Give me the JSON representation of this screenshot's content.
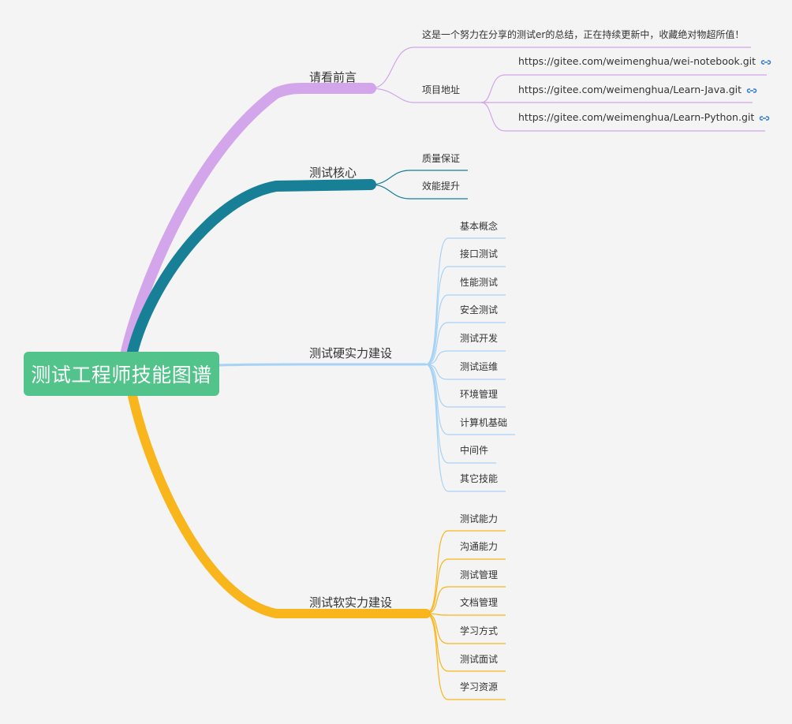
{
  "root": {
    "label": "测试工程师技能图谱"
  },
  "colors": {
    "root_bg": "#52c38a",
    "branch_preface": "#d3a5ea",
    "branch_core": "#177f96",
    "branch_hard": "#a6d2f6",
    "branch_soft": "#f9b61c",
    "link_icon": "#2f7bd8"
  },
  "branches": {
    "preface": {
      "label": "请看前言",
      "note": "这是一个努力在分享的测试er的总结，正在持续更新中，收藏绝对物超所值！",
      "project": {
        "label": "项目地址",
        "links": [
          {
            "url": "https://gitee.com/weimenghua/wei-notebook.git",
            "icon": "link-icon"
          },
          {
            "url": "https://gitee.com/weimenghua/Learn-Java.git",
            "icon": "link-icon"
          },
          {
            "url": "https://gitee.com/weimenghua/Learn-Python.git",
            "icon": "link-icon"
          }
        ]
      }
    },
    "core": {
      "label": "测试核心",
      "items": [
        "质量保证",
        "效能提升"
      ]
    },
    "hard": {
      "label": "测试硬实力建设",
      "items": [
        "基本概念",
        "接口测试",
        "性能测试",
        "安全测试",
        "测试开发",
        "测试运维",
        "环境管理",
        "计算机基础",
        "中间件",
        "其它技能"
      ]
    },
    "soft": {
      "label": "测试软实力建设",
      "items": [
        "测试能力",
        "沟通能力",
        "测试管理",
        "文档管理",
        "学习方式",
        "测试面试",
        "学习资源"
      ]
    }
  }
}
